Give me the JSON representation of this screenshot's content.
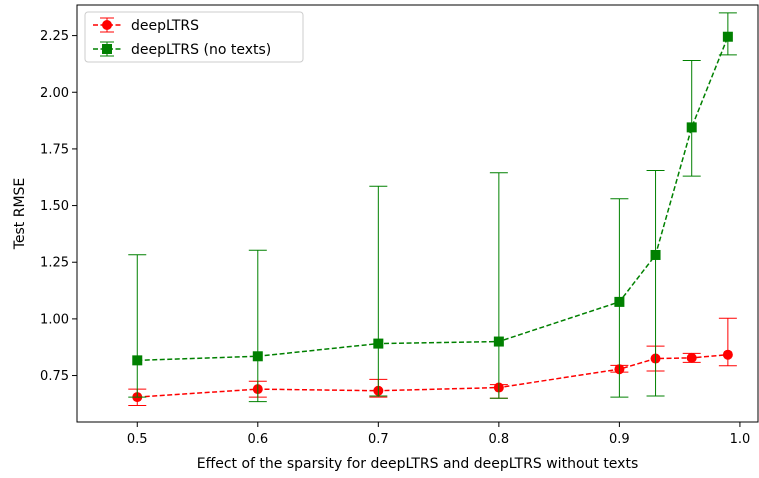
{
  "chart_data": {
    "type": "line",
    "title": "",
    "xlabel": "Effect of the sparsity for deepLTRS and deepLTRS without texts",
    "ylabel": "Test RMSE",
    "xlim": [
      0.45,
      1.015
    ],
    "ylim": [
      0.545,
      2.385
    ],
    "xticks": [
      0.5,
      0.6,
      0.7,
      0.8,
      0.9,
      1.0
    ],
    "xtick_labels": [
      "0.5",
      "0.6",
      "0.7",
      "0.8",
      "0.9",
      "1.0"
    ],
    "yticks": [
      0.75,
      1.0,
      1.25,
      1.5,
      1.75,
      2.0,
      2.25
    ],
    "ytick_labels": [
      "0.75",
      "1.00",
      "1.25",
      "1.50",
      "1.75",
      "2.00",
      "2.25"
    ],
    "grid": false,
    "legend_position": "top-left",
    "x": [
      0.5,
      0.6,
      0.7,
      0.8,
      0.9,
      0.93,
      0.96,
      0.99
    ],
    "series": [
      {
        "name": "deepLTRS",
        "color": "#ff0000",
        "marker": "circle",
        "line_style": "dashed",
        "values": [
          0.655,
          0.69,
          0.683,
          0.697,
          0.778,
          0.825,
          0.828,
          0.842
        ],
        "err_low": [
          0.618,
          0.655,
          0.655,
          0.65,
          0.765,
          0.77,
          0.808,
          0.793
        ],
        "err_high": [
          0.69,
          0.725,
          0.733,
          0.71,
          0.795,
          0.88,
          0.848,
          1.003
        ]
      },
      {
        "name": "deepLTRS (no texts)",
        "color": "#008000",
        "marker": "square",
        "line_style": "dashed",
        "values": [
          0.817,
          0.835,
          0.891,
          0.9,
          1.075,
          1.282,
          1.845,
          2.245
        ],
        "err_low": [
          0.655,
          0.635,
          0.66,
          0.65,
          0.655,
          0.66,
          1.63,
          2.165
        ],
        "err_high": [
          1.283,
          1.303,
          1.585,
          1.645,
          1.53,
          1.655,
          2.14,
          2.35
        ]
      }
    ]
  }
}
